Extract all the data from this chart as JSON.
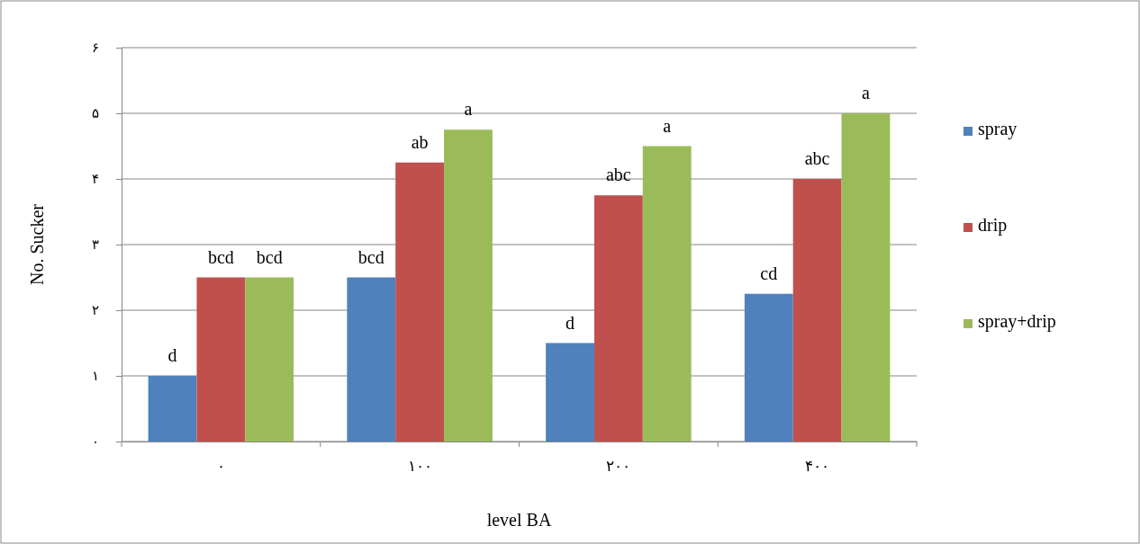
{
  "chart_data": {
    "type": "bar",
    "xlabel": "level BA",
    "ylabel": "No. Sucker",
    "categories": [
      "۰",
      "۱۰۰",
      "۲۰۰",
      "۴۰۰"
    ],
    "series": [
      {
        "name": "spray",
        "color": "#4f81bd",
        "values": [
          1,
          2.5,
          1.5,
          2.25
        ],
        "value_labels": [
          "d",
          "bcd",
          "d",
          "cd"
        ]
      },
      {
        "name": "drip",
        "color": "#c0504d",
        "values": [
          2.5,
          4.25,
          3.75,
          4
        ],
        "value_labels": [
          "bcd",
          "ab",
          "abc",
          "abc"
        ]
      },
      {
        "name": "spray+drip",
        "color": "#9bbb59",
        "values": [
          2.5,
          4.75,
          4.5,
          5
        ],
        "value_labels": [
          "bcd",
          "a",
          "a",
          "a"
        ]
      }
    ],
    "ylim": [
      0,
      6
    ],
    "yticks": [
      {
        "value": 0,
        "label": "۰"
      },
      {
        "value": 1,
        "label": "۱"
      },
      {
        "value": 2,
        "label": "۲"
      },
      {
        "value": 3,
        "label": "۳"
      },
      {
        "value": 4,
        "label": "۴"
      },
      {
        "value": 5,
        "label": "۵"
      },
      {
        "value": 6,
        "label": "۶"
      }
    ],
    "grid": "y",
    "legend": "right"
  }
}
